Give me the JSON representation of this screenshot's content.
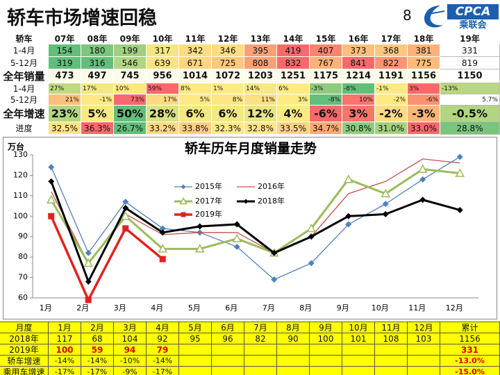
{
  "header": {
    "title": "轿车市场增速回稳",
    "page_number": "8",
    "logo_text": "CPCA",
    "logo_subtext": "乘联会"
  },
  "top_table": {
    "columns": [
      "轿车",
      "07年",
      "08年",
      "09年",
      "10年",
      "11年",
      "12年",
      "13年",
      "14年",
      "15年",
      "16年",
      "17年",
      "18年",
      "19年"
    ],
    "rows": [
      {
        "label": "1-4月",
        "cells": [
          154,
          180,
          199,
          317,
          342,
          346,
          395,
          419,
          407,
          373,
          368,
          381,
          331
        ],
        "colors": [
          "#63be7b",
          "#7ec57d",
          "#9fcf7f",
          "#f4e783",
          "#fedd81",
          "#fedc81",
          "#f9a077",
          "#f8696b",
          "#f98570",
          "#fcbf7b",
          "#fcc87d",
          "#fbb279",
          "#ffffff"
        ]
      },
      {
        "label": "5-12月",
        "cells": [
          319,
          316,
          546,
          639,
          671,
          725,
          808,
          832,
          767,
          841,
          822,
          775,
          819
        ],
        "colors": [
          "#63be7b",
          "#63be7b",
          "#b2d580",
          "#fde283",
          "#fed680",
          "#fdc97d",
          "#f9a077",
          "#f8696b",
          "#fbb279",
          "#f8696b",
          "#fa9473",
          "#fcbb7a",
          "#ffffff"
        ]
      },
      {
        "label": "全年销量",
        "cells": [
          473,
          497,
          745,
          956,
          1014,
          1072,
          1203,
          1251,
          1175,
          1214,
          1191,
          1156,
          1150
        ],
        "colors": [
          "#fbfbe9",
          "#fbfbe9",
          "#fbfbe9",
          "#fbfbe9",
          "#fbfbe9",
          "#fbfbe9",
          "#fbfbe9",
          "#fbfbe9",
          "#fbfbe9",
          "#fbfbe9",
          "#fbfbe9",
          "#fbfbe9",
          "#ffffff"
        ]
      },
      {
        "label": "1-4月",
        "cells": [
          "27%",
          "17%",
          "10%",
          "59%",
          "8%",
          "1%",
          "14%",
          "6%",
          "-3%",
          "-8%",
          "-1%",
          "3%",
          "-13%"
        ],
        "colors": [
          "#c0d981",
          "#f2e884",
          "#fde783",
          "#f8696b",
          "#fee983",
          "#ffeb84",
          "#f6e884",
          "#ffeb84",
          "#8fcb7e",
          "#63be7b",
          "#fbe983",
          "#f8696b",
          "#b9d780"
        ]
      },
      {
        "label": "5-12月",
        "cells": [
          "21%",
          "-1%",
          "73%",
          "17%",
          "5%",
          "8%",
          "11%",
          "3%",
          "-8%",
          "10%",
          "-2%",
          "-6%",
          "5.7%"
        ],
        "colors": [
          "#fdc07c",
          "#fee983",
          "#f8696b",
          "#feda81",
          "#fee983",
          "#fee483",
          "#fedf82",
          "#ffeb84",
          "#63be7b",
          "#f8756e",
          "#fee983",
          "#f99272",
          "#ffffff"
        ]
      },
      {
        "label": "全年增速",
        "cells": [
          "23%",
          "5%",
          "50%",
          "28%",
          "6%",
          "6%",
          "12%",
          "4%",
          "-6%",
          "3%",
          "-2%",
          "-3%",
          "-0.5%"
        ],
        "colors": [
          "#b3d580",
          "#f7e984",
          "#63be7b",
          "#d9e182",
          "#f3e884",
          "#f3e884",
          "#e9e583",
          "#fae984",
          "#f8696b",
          "#f8756e",
          "#fedb81",
          "#fcb679",
          "#b1d580"
        ]
      },
      {
        "label": "进度",
        "cells": [
          "32.5%",
          "36.3%",
          "26.7%",
          "33.2%",
          "33.8%",
          "32.3%",
          "32.8%",
          "33.5%",
          "34.7%",
          "30.8%",
          "31.0%",
          "33.0%",
          "28.8%"
        ],
        "colors": [
          "#fee382",
          "#f8696b",
          "#63be7b",
          "#fed981",
          "#fece7f",
          "#feea83",
          "#fee783",
          "#fed380",
          "#fbaa77",
          "#8fcb7e",
          "#a5d17f",
          "#f8696b",
          "#7bc47d"
        ]
      }
    ]
  },
  "chart_data": {
    "type": "line",
    "title": "轿车历年月度销量走势",
    "y_label": "万台",
    "categories": [
      "1月",
      "2月",
      "3月",
      "4月",
      "5月",
      "6月",
      "7月",
      "8月",
      "9月",
      "10月",
      "11月",
      "12月"
    ],
    "series": [
      {
        "name": "2015年",
        "color": "#4f81bd",
        "marker": "diamond",
        "line_width": 1.3,
        "values": [
          124,
          82,
          107,
          94,
          92,
          85,
          69,
          77,
          96,
          106,
          118,
          129
        ]
      },
      {
        "name": "2016年",
        "color": "#c0504d",
        "marker": "none",
        "line_width": 1.3,
        "values": [
          112,
          77,
          101,
          91,
          92,
          92,
          82,
          90,
          111,
          117,
          128,
          126
        ]
      },
      {
        "name": "2017年",
        "color": "#9bbb59",
        "marker": "triangle",
        "line_width": 3,
        "values": [
          108,
          77,
          100,
          84,
          84,
          89,
          82,
          94,
          118,
          111,
          123,
          121
        ]
      },
      {
        "name": "2018年",
        "color": "#000000",
        "marker": "diamond",
        "line_width": 3,
        "values": [
          117,
          68,
          104,
          92,
          95,
          96,
          82,
          90,
          100,
          101,
          108,
          103
        ]
      },
      {
        "name": "2019年",
        "color": "#e3211c",
        "marker": "square",
        "line_width": 3.5,
        "values": [
          100,
          59,
          94,
          79,
          null,
          null,
          null,
          null,
          null,
          null,
          null,
          null
        ]
      }
    ],
    "ylim": [
      60,
      130
    ],
    "yticks": [
      60,
      70,
      80,
      90,
      100,
      110,
      120,
      130
    ],
    "grid": false
  },
  "bottom_table": {
    "columns": [
      "月度",
      "1月",
      "2月",
      "3月",
      "4月",
      "5月",
      "6月",
      "7月",
      "8月",
      "9月",
      "10月",
      "11月",
      "12月",
      "累计"
    ],
    "rows": [
      {
        "label": "2018年",
        "cells": [
          117,
          68,
          104,
          92,
          95,
          96,
          82,
          90,
          100,
          101,
          108,
          103,
          1156
        ]
      },
      {
        "label": "2019年",
        "cells": [
          100,
          59,
          94,
          79,
          null,
          null,
          null,
          null,
          null,
          null,
          null,
          null,
          331
        ]
      },
      {
        "label": "轿车增速",
        "cells": [
          "-14%",
          "-14%",
          "-10%",
          "-14%",
          null,
          null,
          null,
          null,
          null,
          null,
          null,
          null,
          "-13.0%"
        ]
      },
      {
        "label": "乘用车增速",
        "cells": [
          "-17%",
          "-17%",
          "-9%",
          "-17%",
          null,
          null,
          null,
          null,
          null,
          null,
          null,
          null,
          "-15.0%"
        ]
      }
    ]
  }
}
